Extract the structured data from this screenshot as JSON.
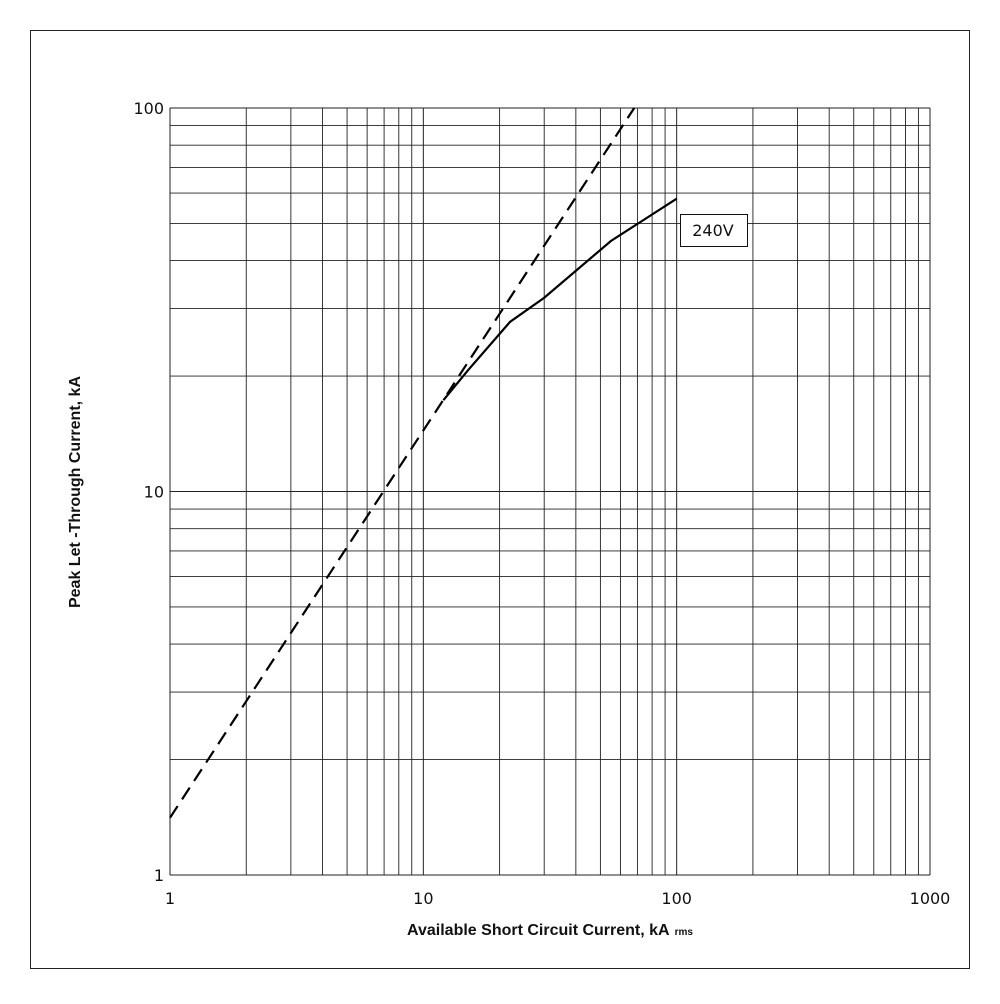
{
  "chart_data": {
    "type": "line",
    "xlabel": "Available Short Circuit Current, kA",
    "xlabel_subscript": "rms",
    "ylabel": "Peak Let -Through Current, kA",
    "xscale": "log",
    "yscale": "log",
    "grid": true,
    "xlim": [
      1,
      1000
    ],
    "ylim": [
      1,
      100
    ],
    "xticks": [
      1,
      10,
      100,
      1000
    ],
    "yticks": [
      1,
      10,
      100
    ],
    "series": [
      {
        "color": "#000000",
        "style": "dashed",
        "x": [
          1,
          68
        ],
        "values": [
          1.41,
          100
        ]
      },
      {
        "color": "#000000",
        "style": "solid",
        "x": [
          12,
          15,
          22,
          30,
          55,
          100
        ],
        "values": [
          17.3,
          20.7,
          27.7,
          32,
          45,
          58
        ]
      }
    ],
    "annotations": [
      {
        "text": "240V"
      }
    ]
  }
}
